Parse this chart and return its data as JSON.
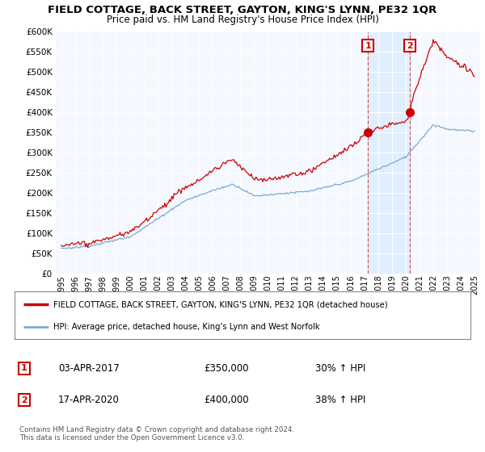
{
  "title": "FIELD COTTAGE, BACK STREET, GAYTON, KING'S LYNN, PE32 1QR",
  "subtitle": "Price paid vs. HM Land Registry's House Price Index (HPI)",
  "legend_line1": "FIELD COTTAGE, BACK STREET, GAYTON, KING'S LYNN, PE32 1QR (detached house)",
  "legend_line2": "HPI: Average price, detached house, King's Lynn and West Norfolk",
  "footnote": "Contains HM Land Registry data © Crown copyright and database right 2024.\nThis data is licensed under the Open Government Licence v3.0.",
  "sale1_date": "03-APR-2017",
  "sale1_price": "£350,000",
  "sale1_hpi": "30% ↑ HPI",
  "sale2_date": "17-APR-2020",
  "sale2_price": "£400,000",
  "sale2_hpi": "38% ↑ HPI",
  "sale1_year": 2017.25,
  "sale2_year": 2020.3,
  "sale1_value": 350000,
  "sale2_value": 400000,
  "red_color": "#cc0000",
  "blue_color": "#7aaad4",
  "shade_color": "#ddeeff",
  "background_color": "#f5f8ff",
  "grid_color": "#cccccc",
  "ylim_max": 600000,
  "yticks": [
    0,
    50000,
    100000,
    150000,
    200000,
    250000,
    300000,
    350000,
    400000,
    450000,
    500000,
    550000,
    600000
  ],
  "xlim_start": 1994.6,
  "xlim_end": 2025.4
}
